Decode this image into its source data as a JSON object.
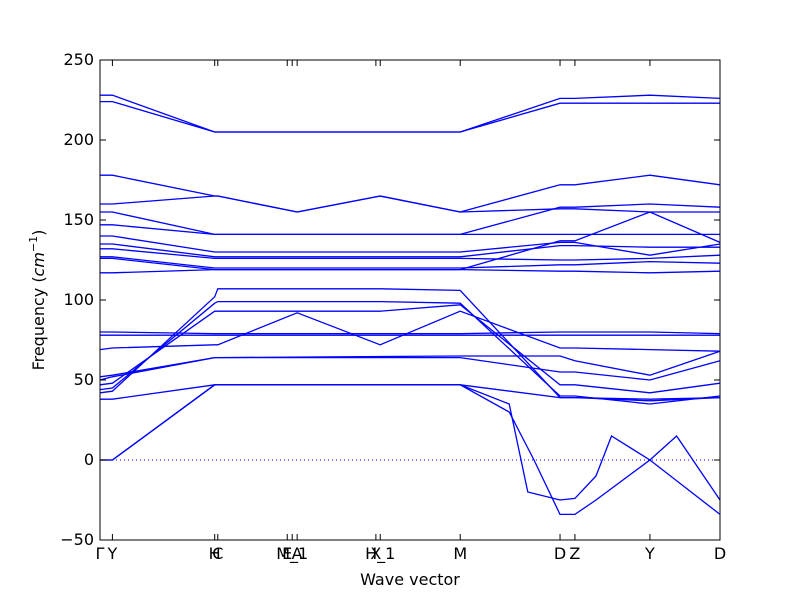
{
  "chart_data": {
    "type": "line",
    "title": "",
    "xlabel": "Wave vector",
    "ylabel": "Frequency ($cm^{-1}$)",
    "ylabel_parts": {
      "text": "Frequency (",
      "unit_base": "cm",
      "unit_exp": "−1",
      "close": ")"
    },
    "xlim": [
      0,
      1
    ],
    "ylim": [
      -50,
      250
    ],
    "y_ticks": [
      -50,
      0,
      50,
      100,
      150,
      200,
      250
    ],
    "y_tick_labels": [
      "−50",
      "0",
      "50",
      "100",
      "150",
      "200",
      "250"
    ],
    "x_ticks": [
      {
        "pos": 0.0,
        "label": "Γ"
      },
      {
        "pos": 0.02,
        "label": "Y"
      },
      {
        "pos": 0.185,
        "label": "H"
      },
      {
        "pos": 0.19,
        "label": "C"
      },
      {
        "pos": 0.302,
        "label": "E"
      },
      {
        "pos": 0.31,
        "label": "M_1"
      },
      {
        "pos": 0.318,
        "label": "A"
      },
      {
        "pos": 0.445,
        "label": "X"
      },
      {
        "pos": 0.452,
        "label": "H_1"
      },
      {
        "pos": 0.581,
        "label": "M"
      },
      {
        "pos": 0.742,
        "label": "D"
      },
      {
        "pos": 0.766,
        "label": "Z"
      },
      {
        "pos": 0.887,
        "label": "Y"
      },
      {
        "pos": 1.0,
        "label": "D"
      }
    ],
    "zero_line": {
      "y": 0,
      "style": "dotted",
      "color": "#0000ff"
    },
    "line_color": "#0000ff",
    "grid": false,
    "series": [
      {
        "points": [
          [
            0,
            228
          ],
          [
            0.02,
            228
          ],
          [
            0.185,
            205
          ],
          [
            0.581,
            205
          ],
          [
            0.742,
            226
          ],
          [
            0.766,
            226
          ],
          [
            0.887,
            228
          ],
          [
            1,
            226
          ]
        ]
      },
      {
        "points": [
          [
            0,
            224
          ],
          [
            0.02,
            224
          ],
          [
            0.185,
            205
          ],
          [
            0.581,
            205
          ],
          [
            0.742,
            223
          ],
          [
            0.766,
            223
          ],
          [
            0.887,
            223
          ],
          [
            1,
            223
          ]
        ]
      },
      {
        "points": [
          [
            0,
            178
          ],
          [
            0.02,
            178
          ],
          [
            0.185,
            165
          ],
          [
            0.19,
            165
          ],
          [
            0.318,
            155
          ],
          [
            0.452,
            165
          ],
          [
            0.581,
            155
          ],
          [
            0.742,
            172
          ],
          [
            0.766,
            172
          ],
          [
            0.887,
            178
          ],
          [
            1,
            172
          ]
        ]
      },
      {
        "points": [
          [
            0,
            160
          ],
          [
            0.02,
            160
          ],
          [
            0.185,
            165
          ],
          [
            0.19,
            165
          ],
          [
            0.318,
            155
          ],
          [
            0.452,
            165
          ],
          [
            0.581,
            155
          ],
          [
            0.742,
            157
          ],
          [
            0.766,
            157
          ],
          [
            0.887,
            155
          ],
          [
            1,
            136
          ]
        ]
      },
      {
        "points": [
          [
            0,
            155
          ],
          [
            0.02,
            155
          ],
          [
            0.185,
            141
          ],
          [
            0.581,
            141
          ],
          [
            0.742,
            158
          ],
          [
            0.766,
            158
          ],
          [
            0.887,
            160
          ],
          [
            1,
            158
          ]
        ]
      },
      {
        "points": [
          [
            0,
            147
          ],
          [
            0.02,
            147
          ],
          [
            0.185,
            141
          ],
          [
            0.581,
            141
          ],
          [
            0.742,
            141
          ],
          [
            0.766,
            141
          ],
          [
            0.887,
            141
          ],
          [
            1,
            141
          ]
        ]
      },
      {
        "points": [
          [
            0,
            140
          ],
          [
            0.02,
            140
          ],
          [
            0.185,
            130
          ],
          [
            0.581,
            130
          ],
          [
            0.742,
            136
          ],
          [
            0.766,
            136
          ],
          [
            0.887,
            128
          ],
          [
            1,
            135
          ]
        ]
      },
      {
        "points": [
          [
            0,
            135
          ],
          [
            0.02,
            135
          ],
          [
            0.185,
            127
          ],
          [
            0.581,
            127
          ],
          [
            0.742,
            134
          ],
          [
            0.766,
            134
          ],
          [
            0.887,
            133
          ],
          [
            1,
            133
          ]
        ]
      },
      {
        "points": [
          [
            0,
            132
          ],
          [
            0.02,
            132
          ],
          [
            0.185,
            126
          ],
          [
            0.581,
            126
          ],
          [
            0.742,
            125
          ],
          [
            0.766,
            125
          ],
          [
            0.887,
            126
          ],
          [
            1,
            128
          ]
        ]
      },
      {
        "points": [
          [
            0,
            127
          ],
          [
            0.02,
            127
          ],
          [
            0.185,
            120
          ],
          [
            0.581,
            120
          ],
          [
            0.742,
            122
          ],
          [
            0.766,
            122
          ],
          [
            0.887,
            124
          ],
          [
            1,
            123
          ]
        ]
      },
      {
        "points": [
          [
            0,
            126
          ],
          [
            0.02,
            126
          ],
          [
            0.185,
            119
          ],
          [
            0.581,
            119
          ],
          [
            0.742,
            118
          ],
          [
            0.766,
            118
          ],
          [
            0.887,
            117
          ],
          [
            1,
            118
          ]
        ]
      },
      {
        "points": [
          [
            0,
            117
          ],
          [
            0.02,
            117
          ],
          [
            0.185,
            119
          ],
          [
            0.581,
            119
          ],
          [
            0.742,
            137
          ],
          [
            0.766,
            137
          ],
          [
            0.887,
            155
          ],
          [
            1,
            155
          ]
        ]
      },
      {
        "points": [
          [
            0,
            80
          ],
          [
            0.02,
            80
          ],
          [
            0.185,
            79
          ],
          [
            0.581,
            79
          ],
          [
            0.742,
            80
          ],
          [
            0.766,
            80
          ],
          [
            0.887,
            80
          ],
          [
            1,
            79
          ]
        ]
      },
      {
        "points": [
          [
            0,
            78
          ],
          [
            0.02,
            78
          ],
          [
            0.185,
            78
          ],
          [
            0.581,
            78
          ],
          [
            0.742,
            78
          ],
          [
            0.766,
            78
          ],
          [
            0.887,
            78
          ],
          [
            1,
            78
          ]
        ]
      },
      {
        "points": [
          [
            0,
            69
          ],
          [
            0.02,
            70
          ],
          [
            0.185,
            72
          ],
          [
            0.19,
            72
          ],
          [
            0.318,
            92
          ],
          [
            0.452,
            72
          ],
          [
            0.581,
            93
          ],
          [
            0.742,
            70
          ],
          [
            0.766,
            70
          ],
          [
            0.887,
            69
          ],
          [
            1,
            68
          ]
        ]
      },
      {
        "points": [
          [
            0,
            52
          ],
          [
            0.02,
            53
          ],
          [
            0.185,
            64
          ],
          [
            0.581,
            65
          ],
          [
            0.742,
            65
          ],
          [
            0.766,
            62
          ],
          [
            0.887,
            53
          ],
          [
            1,
            68
          ]
        ]
      },
      {
        "points": [
          [
            0,
            50
          ],
          [
            0.02,
            52
          ],
          [
            0.185,
            64
          ],
          [
            0.581,
            64
          ],
          [
            0.742,
            55
          ],
          [
            0.766,
            55
          ],
          [
            0.887,
            50
          ],
          [
            1,
            62
          ]
        ]
      },
      {
        "points": [
          [
            0,
            47
          ],
          [
            0.02,
            48
          ],
          [
            0.185,
            93
          ],
          [
            0.19,
            93
          ],
          [
            0.318,
            93
          ],
          [
            0.452,
            93
          ],
          [
            0.581,
            97
          ],
          [
            0.742,
            47
          ],
          [
            0.766,
            47
          ],
          [
            0.887,
            42
          ],
          [
            1,
            48
          ]
        ]
      },
      {
        "points": [
          [
            0,
            44
          ],
          [
            0.02,
            45
          ],
          [
            0.185,
            98
          ],
          [
            0.19,
            99
          ],
          [
            0.318,
            99
          ],
          [
            0.452,
            99
          ],
          [
            0.581,
            98
          ],
          [
            0.742,
            40
          ],
          [
            0.766,
            40
          ],
          [
            0.887,
            35
          ],
          [
            1,
            40
          ]
        ]
      },
      {
        "points": [
          [
            0,
            42
          ],
          [
            0.02,
            43
          ],
          [
            0.185,
            102
          ],
          [
            0.19,
            107
          ],
          [
            0.318,
            107
          ],
          [
            0.452,
            107
          ],
          [
            0.581,
            106
          ],
          [
            0.742,
            39
          ],
          [
            0.766,
            39
          ],
          [
            0.887,
            38
          ],
          [
            1,
            39
          ]
        ]
      },
      {
        "points": [
          [
            0,
            38
          ],
          [
            0.02,
            38
          ],
          [
            0.185,
            47
          ],
          [
            0.581,
            47
          ],
          [
            0.742,
            39
          ],
          [
            0.766,
            39
          ],
          [
            0.887,
            37
          ],
          [
            1,
            39
          ]
        ]
      },
      {
        "points": [
          [
            0,
            0
          ],
          [
            0.02,
            0
          ],
          [
            0.185,
            47
          ],
          [
            0.581,
            47
          ],
          [
            0.66,
            35
          ],
          [
            0.69,
            -20
          ],
          [
            0.742,
            -25
          ],
          [
            0.766,
            -24
          ],
          [
            0.8,
            -10
          ],
          [
            0.825,
            15
          ],
          [
            0.887,
            0
          ],
          [
            1,
            -34
          ]
        ]
      },
      {
        "points": [
          [
            0,
            0
          ],
          [
            0.02,
            0
          ],
          [
            0.185,
            47
          ],
          [
            0.581,
            47
          ],
          [
            0.66,
            30
          ],
          [
            0.7,
            0
          ],
          [
            0.742,
            -34
          ],
          [
            0.766,
            -34
          ],
          [
            0.8,
            -25
          ],
          [
            0.887,
            0
          ],
          [
            0.93,
            15
          ],
          [
            1,
            -25
          ]
        ]
      }
    ]
  }
}
